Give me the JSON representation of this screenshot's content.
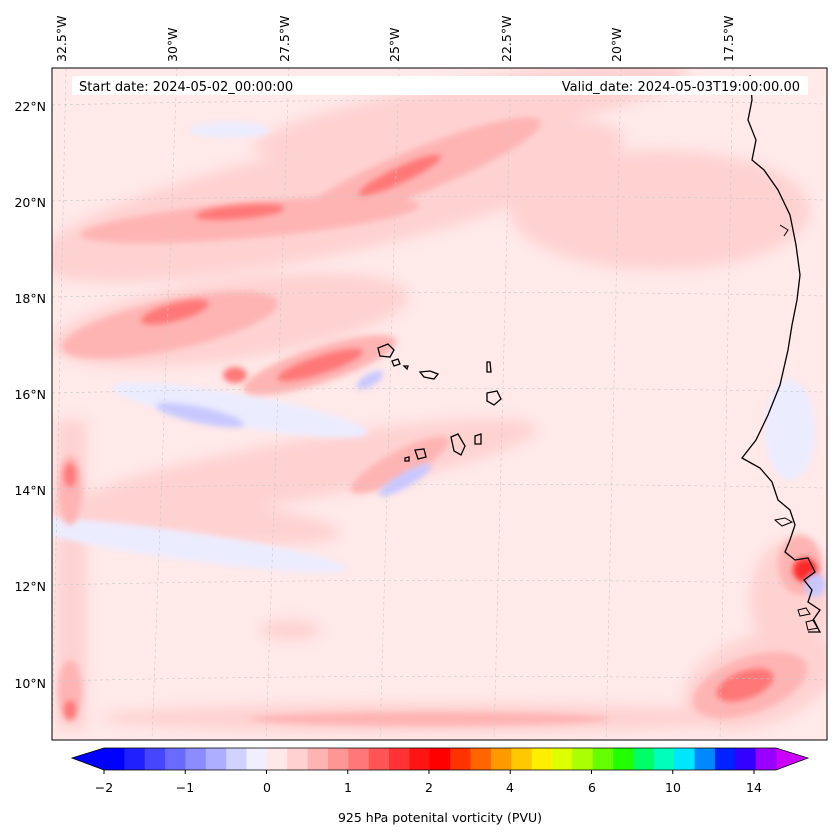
{
  "header": {
    "start_date": "Start date: 2024-05-02_00:00:00",
    "valid_date": "Valid_date: 2024-05-03T19:00:00.00"
  },
  "longitude_labels": [
    "32.5°W",
    "30°W",
    "27.5°W",
    "25°W",
    "22.5°W",
    "20°W",
    "17.5°W"
  ],
  "latitude_labels": [
    "22°N",
    "20°N",
    "18°N",
    "16°N",
    "14°N",
    "12°N",
    "10°N"
  ],
  "colorbar": {
    "label": "925 hPa potenital vorticity (PVU)",
    "tick_labels": [
      "−2",
      "−1",
      "0",
      "1",
      "2",
      "4",
      "6",
      "10",
      "14"
    ],
    "colors": [
      "#0000ff",
      "#2020ff",
      "#4646ff",
      "#6a6aff",
      "#8c8cff",
      "#aeaeff",
      "#d2d2ff",
      "#efefff",
      "#ffe8e8",
      "#ffd0d0",
      "#ffb4b4",
      "#ff9696",
      "#ff7777",
      "#ff5555",
      "#ff3333",
      "#ff1414",
      "#ff0000",
      "#ff3300",
      "#ff6600",
      "#ff9900",
      "#ffc800",
      "#ffee00",
      "#ddff00",
      "#aaff00",
      "#66ff00",
      "#22ff00",
      "#00ff66",
      "#00ffbb",
      "#00e6ff",
      "#0088ff",
      "#0022ff",
      "#3300ff",
      "#9900ff"
    ],
    "under_color": "#0000ff",
    "over_color": "#cc00ff"
  },
  "colors": {
    "background_field": "#ffe9e9",
    "light_pink": "#ffd2d2",
    "pink": "#ffb4b4",
    "red": "#ff7777",
    "dark_red": "#ff4444",
    "pale_blue": "#e6e6ff",
    "blue": "#c8c8ff",
    "coast": "#000000"
  }
}
